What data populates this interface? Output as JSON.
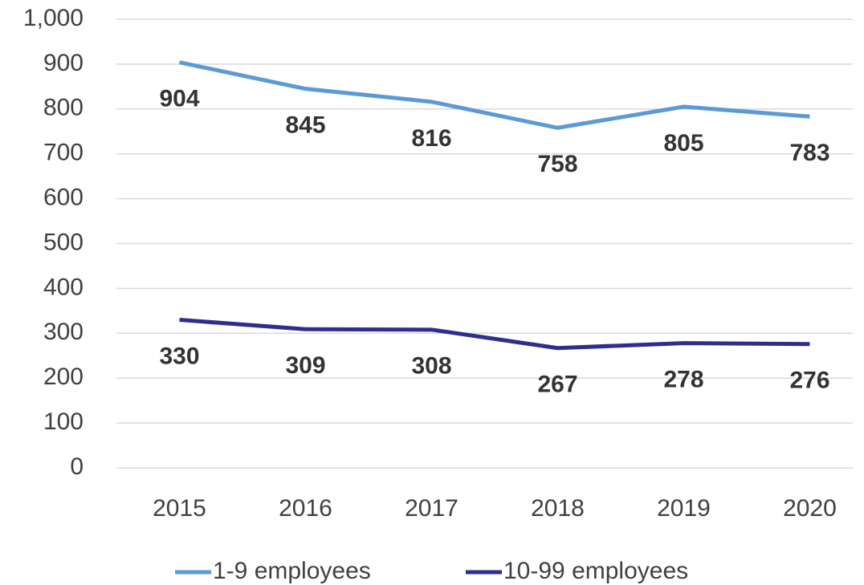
{
  "chart_data": {
    "type": "line",
    "categories": [
      "2015",
      "2016",
      "2017",
      "2018",
      "2019",
      "2020"
    ],
    "series": [
      {
        "name": "1-9 employees",
        "color": "#5b9bd5",
        "values": [
          904,
          845,
          816,
          758,
          805,
          783
        ]
      },
      {
        "name": "10-99 employees",
        "color": "#2e2e8f",
        "values": [
          330,
          309,
          308,
          267,
          278,
          276
        ]
      }
    ],
    "ylim": [
      0,
      1000
    ],
    "yticks": [
      0,
      100,
      200,
      300,
      400,
      500,
      600,
      700,
      800,
      900,
      {
        "value": 1000,
        "label": "1,000"
      }
    ],
    "grid": true,
    "legend": "bottom"
  }
}
